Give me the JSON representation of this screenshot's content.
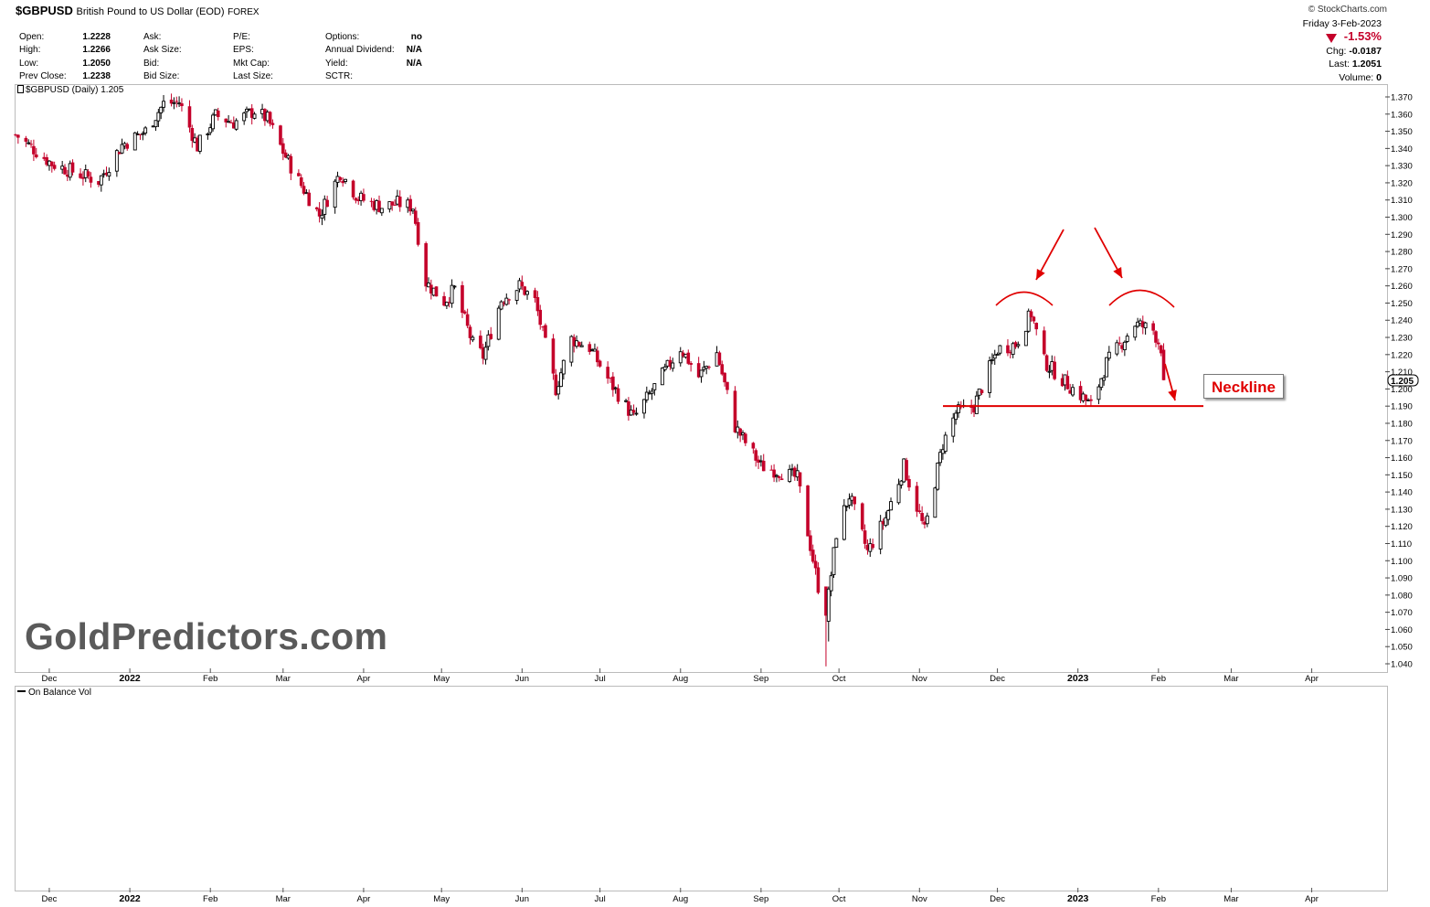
{
  "header": {
    "symbol": "$GBPUSD",
    "name": "British Pound to US Dollar (EOD)",
    "exchange": "FOREX",
    "credit": "© StockCharts.com"
  },
  "quote": {
    "col1": [
      {
        "label": "Open:",
        "value": "1.2228"
      },
      {
        "label": "High:",
        "value": "1.2266"
      },
      {
        "label": "Low:",
        "value": "1.2050"
      },
      {
        "label": "Prev Close:",
        "value": "1.2238"
      }
    ],
    "col2": [
      {
        "label": "Ask:",
        "value": ""
      },
      {
        "label": "Ask Size:",
        "value": ""
      },
      {
        "label": "Bid:",
        "value": ""
      },
      {
        "label": "Bid Size:",
        "value": ""
      }
    ],
    "col3": [
      {
        "label": "P/E:",
        "value": ""
      },
      {
        "label": "EPS:",
        "value": ""
      },
      {
        "label": "Mkt Cap:",
        "value": ""
      },
      {
        "label": "Last Size:",
        "value": ""
      }
    ],
    "col4": [
      {
        "label": "Options:",
        "value": "no"
      },
      {
        "label": "Annual Dividend:",
        "value": "N/A"
      },
      {
        "label": "Yield:",
        "value": "N/A"
      },
      {
        "label": "SCTR:",
        "value": ""
      }
    ]
  },
  "summary": {
    "date": "Friday   3-Feb-2023",
    "pct": "-1.53%",
    "chg_label": "Chg:",
    "chg": "-0.0187",
    "last_label": "Last:",
    "last": "1.2051",
    "volume_label": "Volume:",
    "volume": "0"
  },
  "watermark": "GoldPredictors.com",
  "annotation": {
    "label": "Neckline",
    "color": "#e00000"
  },
  "colors": {
    "up": "#000000",
    "down": "#c4002a",
    "annotation": "#e00000"
  },
  "chart_data": [
    {
      "type": "candlestick",
      "legend": "$GBPUSD (Daily) 1.205",
      "last_value": "1.205",
      "ylim": [
        1.035,
        1.378
      ],
      "y_ticks": [
        "1.370",
        "1.360",
        "1.350",
        "1.340",
        "1.330",
        "1.320",
        "1.310",
        "1.300",
        "1.290",
        "1.280",
        "1.270",
        "1.260",
        "1.250",
        "1.240",
        "1.230",
        "1.220",
        "1.210",
        "1.200",
        "1.190",
        "1.180",
        "1.170",
        "1.160",
        "1.150",
        "1.140",
        "1.130",
        "1.120",
        "1.110",
        "1.100",
        "1.090",
        "1.080",
        "1.070",
        "1.060",
        "1.050",
        "1.040"
      ],
      "x_ticks": [
        {
          "label": "Dec",
          "date": "2021-12-01",
          "bold": false
        },
        {
          "label": "2022",
          "date": "2022-01-01",
          "bold": true
        },
        {
          "label": "Feb",
          "date": "2022-02-01",
          "bold": false
        },
        {
          "label": "Mar",
          "date": "2022-03-01",
          "bold": false
        },
        {
          "label": "Apr",
          "date": "2022-04-01",
          "bold": false
        },
        {
          "label": "May",
          "date": "2022-05-01",
          "bold": false
        },
        {
          "label": "Jun",
          "date": "2022-06-01",
          "bold": false
        },
        {
          "label": "Jul",
          "date": "2022-07-01",
          "bold": false
        },
        {
          "label": "Aug",
          "date": "2022-08-01",
          "bold": false
        },
        {
          "label": "Sep",
          "date": "2022-09-01",
          "bold": false
        },
        {
          "label": "Oct",
          "date": "2022-10-01",
          "bold": false
        },
        {
          "label": "Nov",
          "date": "2022-11-01",
          "bold": false
        },
        {
          "label": "Dec",
          "date": "2022-12-01",
          "bold": false
        },
        {
          "label": "2023",
          "date": "2023-01-01",
          "bold": true
        },
        {
          "label": "Feb",
          "date": "2023-02-01",
          "bold": false
        },
        {
          "label": "Mar",
          "date": "2023-03-01",
          "bold": false
        },
        {
          "label": "Apr",
          "date": "2023-04-01",
          "bold": false
        }
      ],
      "x_range": [
        "2021-11-18",
        "2023-04-30"
      ],
      "path": [
        [
          "2021-11-18",
          1.348
        ],
        [
          "2021-12-02",
          1.331
        ],
        [
          "2021-12-20",
          1.321
        ],
        [
          "2021-12-29",
          1.342
        ],
        [
          "2022-01-07",
          1.35
        ],
        [
          "2022-01-14",
          1.366
        ],
        [
          "2022-01-20",
          1.367
        ],
        [
          "2022-01-27",
          1.341
        ],
        [
          "2022-02-03",
          1.359
        ],
        [
          "2022-02-10",
          1.355
        ],
        [
          "2022-02-18",
          1.362
        ],
        [
          "2022-02-23",
          1.357
        ],
        [
          "2022-03-01",
          1.338
        ],
        [
          "2022-03-07",
          1.321
        ],
        [
          "2022-03-15",
          1.301
        ],
        [
          "2022-03-23",
          1.326
        ],
        [
          "2022-03-30",
          1.311
        ],
        [
          "2022-04-08",
          1.306
        ],
        [
          "2022-04-14",
          1.308
        ],
        [
          "2022-04-20",
          1.306
        ],
        [
          "2022-04-25",
          1.262
        ],
        [
          "2022-05-02",
          1.251
        ],
        [
          "2022-05-06",
          1.258
        ],
        [
          "2022-05-13",
          1.226
        ],
        [
          "2022-05-17",
          1.219
        ],
        [
          "2022-05-24",
          1.252
        ],
        [
          "2022-05-31",
          1.26
        ],
        [
          "2022-06-06",
          1.251
        ],
        [
          "2022-06-14",
          1.2
        ],
        [
          "2022-06-20",
          1.229
        ],
        [
          "2022-06-27",
          1.224
        ],
        [
          "2022-07-04",
          1.206
        ],
        [
          "2022-07-14",
          1.183
        ],
        [
          "2022-07-22",
          1.201
        ],
        [
          "2022-08-01",
          1.224
        ],
        [
          "2022-08-08",
          1.207
        ],
        [
          "2022-08-15",
          1.221
        ],
        [
          "2022-08-22",
          1.178
        ],
        [
          "2022-09-01",
          1.155
        ],
        [
          "2022-09-08",
          1.152
        ],
        [
          "2022-09-15",
          1.148
        ],
        [
          "2022-09-23",
          1.085
        ],
        [
          "2022-09-26",
          1.068
        ],
        [
          "2022-09-30",
          1.116
        ],
        [
          "2022-10-05",
          1.138
        ],
        [
          "2022-10-12",
          1.105
        ],
        [
          "2022-10-19",
          1.125
        ],
        [
          "2022-10-26",
          1.155
        ],
        [
          "2022-11-03",
          1.117
        ],
        [
          "2022-11-10",
          1.168
        ],
        [
          "2022-11-15",
          1.186
        ],
        [
          "2022-11-22",
          1.19
        ],
        [
          "2022-12-01",
          1.223
        ],
        [
          "2022-12-08",
          1.226
        ],
        [
          "2022-12-14",
          1.244
        ],
        [
          "2022-12-19",
          1.216
        ],
        [
          "2022-12-27",
          1.204
        ],
        [
          "2023-01-03",
          1.195
        ],
        [
          "2023-01-06",
          1.19
        ],
        [
          "2023-01-12",
          1.215
        ],
        [
          "2023-01-17",
          1.225
        ],
        [
          "2023-01-23",
          1.238
        ],
        [
          "2023-01-30",
          1.234
        ],
        [
          "2023-02-02",
          1.224
        ],
        [
          "2023-02-03",
          1.205
        ]
      ]
    },
    {
      "type": "line",
      "legend": "On Balance Vol",
      "x_ticks_same_as_above": true
    }
  ]
}
